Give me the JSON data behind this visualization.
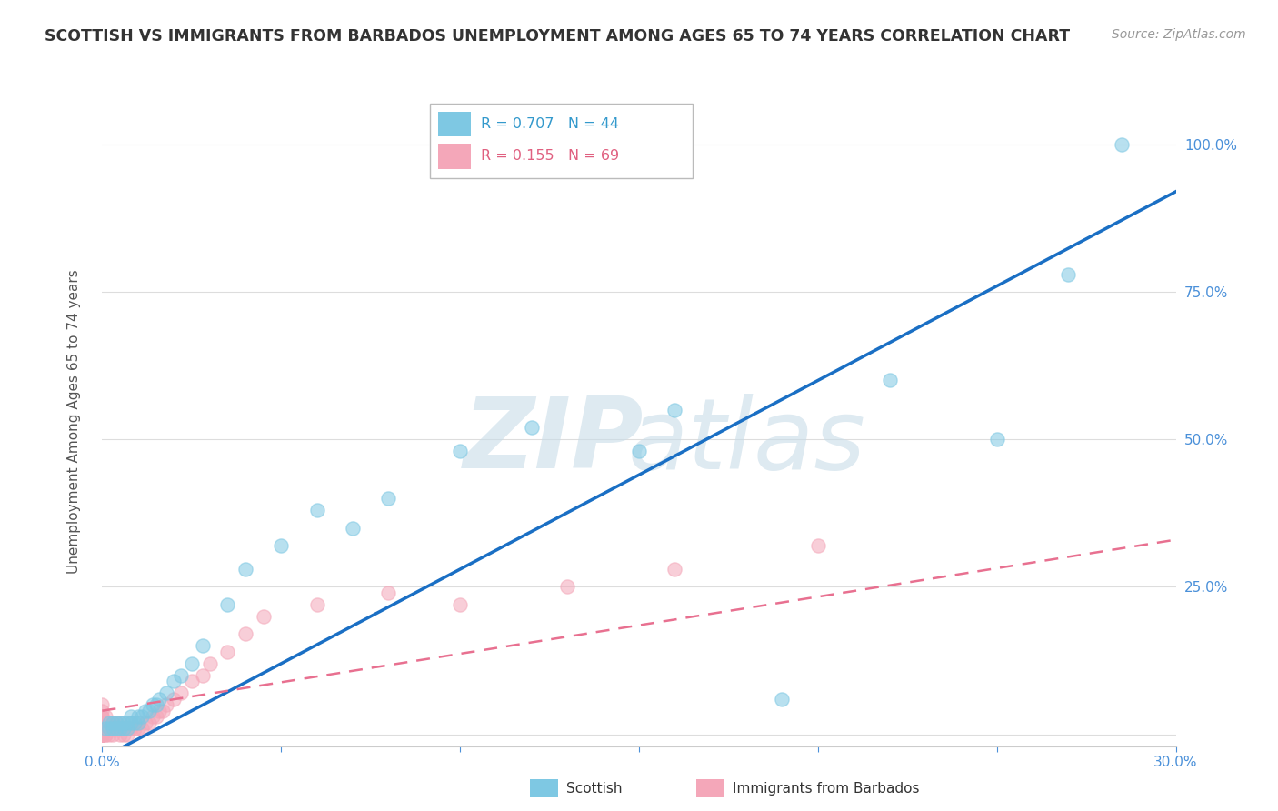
{
  "title": "SCOTTISH VS IMMIGRANTS FROM BARBADOS UNEMPLOYMENT AMONG AGES 65 TO 74 YEARS CORRELATION CHART",
  "source": "Source: ZipAtlas.com",
  "ylabel": "Unemployment Among Ages 65 to 74 years",
  "xlim": [
    0.0,
    0.3
  ],
  "ylim": [
    -0.02,
    1.08
  ],
  "xticks": [
    0.0,
    0.05,
    0.1,
    0.15,
    0.2,
    0.25,
    0.3
  ],
  "xticklabels": [
    "0.0%",
    "",
    "",
    "",
    "",
    "",
    "30.0%"
  ],
  "yticks": [
    0.0,
    0.25,
    0.5,
    0.75,
    1.0
  ],
  "yticklabels": [
    "",
    "25.0%",
    "50.0%",
    "75.0%",
    "100.0%"
  ],
  "scottish_color": "#7ec8e3",
  "barbados_color": "#f4a7b9",
  "scottish_R": 0.707,
  "scottish_N": 44,
  "barbados_R": 0.155,
  "barbados_N": 69,
  "grid_color": "#dddddd",
  "bg_color": "#ffffff",
  "blue_line_color": "#1a6fc4",
  "pink_line_color": "#e87090",
  "scottish_x": [
    0.001,
    0.002,
    0.002,
    0.003,
    0.003,
    0.004,
    0.004,
    0.005,
    0.005,
    0.006,
    0.006,
    0.007,
    0.007,
    0.008,
    0.008,
    0.009,
    0.01,
    0.01,
    0.011,
    0.012,
    0.013,
    0.014,
    0.015,
    0.016,
    0.018,
    0.02,
    0.022,
    0.025,
    0.028,
    0.035,
    0.04,
    0.05,
    0.06,
    0.07,
    0.08,
    0.1,
    0.12,
    0.15,
    0.16,
    0.19,
    0.22,
    0.25,
    0.27,
    0.285
  ],
  "scottish_y": [
    0.01,
    0.01,
    0.02,
    0.01,
    0.02,
    0.01,
    0.02,
    0.01,
    0.02,
    0.01,
    0.02,
    0.01,
    0.02,
    0.02,
    0.03,
    0.02,
    0.02,
    0.03,
    0.03,
    0.04,
    0.04,
    0.05,
    0.05,
    0.06,
    0.07,
    0.09,
    0.1,
    0.12,
    0.15,
    0.22,
    0.28,
    0.32,
    0.38,
    0.35,
    0.4,
    0.48,
    0.52,
    0.48,
    0.55,
    0.06,
    0.6,
    0.5,
    0.78,
    1.0
  ],
  "barbados_x": [
    0.0,
    0.0,
    0.0,
    0.0,
    0.0,
    0.0,
    0.0,
    0.0,
    0.0,
    0.0,
    0.0,
    0.0,
    0.0,
    0.0,
    0.0,
    0.0,
    0.0,
    0.0,
    0.0,
    0.0,
    0.001,
    0.001,
    0.001,
    0.001,
    0.001,
    0.001,
    0.001,
    0.002,
    0.002,
    0.002,
    0.003,
    0.003,
    0.003,
    0.004,
    0.004,
    0.005,
    0.005,
    0.005,
    0.006,
    0.006,
    0.007,
    0.007,
    0.008,
    0.008,
    0.009,
    0.01,
    0.01,
    0.011,
    0.012,
    0.013,
    0.014,
    0.015,
    0.016,
    0.017,
    0.018,
    0.02,
    0.022,
    0.025,
    0.028,
    0.03,
    0.035,
    0.04,
    0.045,
    0.06,
    0.08,
    0.1,
    0.13,
    0.16,
    0.2
  ],
  "barbados_y": [
    0.0,
    0.0,
    0.0,
    0.0,
    0.0,
    0.0,
    0.0,
    0.0,
    0.0,
    0.0,
    0.01,
    0.01,
    0.01,
    0.02,
    0.02,
    0.02,
    0.03,
    0.03,
    0.04,
    0.05,
    0.0,
    0.0,
    0.01,
    0.01,
    0.02,
    0.02,
    0.03,
    0.0,
    0.01,
    0.02,
    0.0,
    0.01,
    0.02,
    0.01,
    0.02,
    0.0,
    0.01,
    0.02,
    0.0,
    0.01,
    0.0,
    0.01,
    0.01,
    0.02,
    0.01,
    0.01,
    0.02,
    0.01,
    0.02,
    0.02,
    0.03,
    0.03,
    0.04,
    0.04,
    0.05,
    0.06,
    0.07,
    0.09,
    0.1,
    0.12,
    0.14,
    0.17,
    0.2,
    0.22,
    0.24,
    0.22,
    0.25,
    0.28,
    0.32
  ],
  "scottish_line_x": [
    0.0,
    0.3
  ],
  "scottish_line_y": [
    -0.04,
    0.92
  ],
  "barbados_line_x": [
    0.0,
    0.3
  ],
  "barbados_line_y": [
    0.04,
    0.33
  ]
}
